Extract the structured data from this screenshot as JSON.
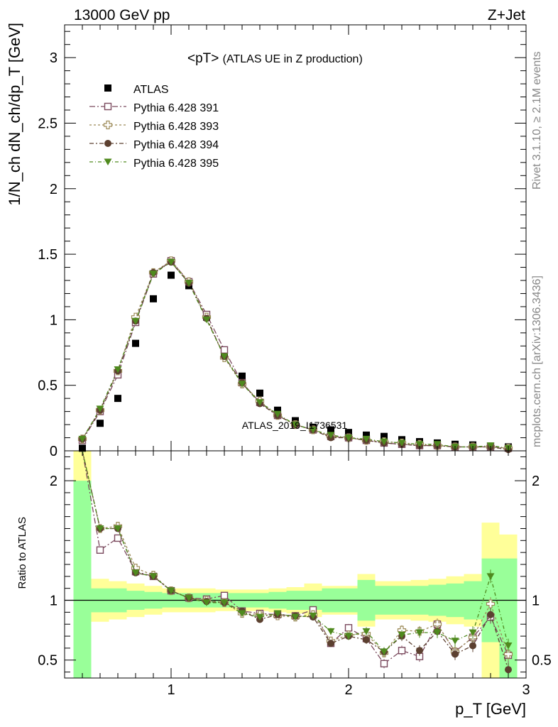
{
  "header": {
    "left": "13000 GeV pp",
    "right": "Z+Jet"
  },
  "side_labels": {
    "rivet": "Rivet 3.1.10, ≥ 2.1M events",
    "mcplots": "mcplots.cern.ch [arXiv:1306.3436]"
  },
  "watermark": "ATLAS_2019_I1736531",
  "chart_data": [
    {
      "type": "scatter",
      "title": "<pT> (ATLAS UE in Z production)",
      "title_main": "<pT>",
      "title_sub": "(ATLAS UE in Z production)",
      "ylabel": "1/N_ch dN_ch/dp_T [GeV]",
      "xlim": [
        0.4,
        3.0
      ],
      "ylim": [
        0,
        3.25
      ],
      "x_ticks": [
        "1",
        "2",
        "3"
      ],
      "y_ticks": [
        "0",
        "0.5",
        "1",
        "1.5",
        "2",
        "2.5",
        "3"
      ],
      "legend_position": "top-left",
      "x": [
        0.5,
        0.6,
        0.7,
        0.8,
        0.9,
        1.0,
        1.1,
        1.2,
        1.3,
        1.4,
        1.5,
        1.6,
        1.7,
        1.8,
        1.9,
        2.0,
        2.1,
        2.2,
        2.3,
        2.4,
        2.5,
        2.6,
        2.7,
        2.8,
        2.9
      ],
      "series": [
        {
          "name": "ATLAS",
          "color": "#000000",
          "marker": "square-filled",
          "values": [
            0.02,
            0.21,
            0.4,
            0.82,
            1.16,
            1.34,
            1.26,
            1.02,
            0.74,
            0.57,
            0.44,
            0.31,
            0.23,
            0.18,
            0.16,
            0.14,
            0.12,
            0.11,
            0.085,
            0.07,
            0.06,
            0.05,
            0.045,
            0.035,
            0.03
          ]
        },
        {
          "name": "Pythia 6.428 391",
          "color": "#7b4a5e",
          "marker": "square-open",
          "values": [
            0.08,
            0.3,
            0.58,
            0.98,
            1.35,
            1.45,
            1.29,
            1.04,
            0.77,
            0.52,
            0.37,
            0.27,
            0.2,
            0.16,
            0.11,
            0.1,
            0.08,
            0.06,
            0.05,
            0.04,
            0.04,
            0.03,
            0.03,
            0.03,
            0.02
          ]
        },
        {
          "name": "Pythia 6.428 393",
          "color": "#9c8a58",
          "marker": "cross-open",
          "values": [
            0.09,
            0.31,
            0.61,
            1.02,
            1.36,
            1.45,
            1.29,
            1.02,
            0.71,
            0.51,
            0.38,
            0.27,
            0.2,
            0.16,
            0.11,
            0.1,
            0.08,
            0.07,
            0.06,
            0.05,
            0.04,
            0.03,
            0.03,
            0.03,
            0.02
          ]
        },
        {
          "name": "Pythia 6.428 394",
          "color": "#5c4030",
          "marker": "circle-filled",
          "values": [
            0.09,
            0.31,
            0.61,
            0.99,
            1.36,
            1.44,
            1.28,
            1.01,
            0.72,
            0.52,
            0.36,
            0.27,
            0.2,
            0.16,
            0.1,
            0.1,
            0.08,
            0.06,
            0.05,
            0.04,
            0.04,
            0.03,
            0.03,
            0.03,
            0.01
          ]
        },
        {
          "name": "Pythia 6.428 395",
          "color": "#4f8a1e",
          "marker": "triangle-down-filled",
          "values": [
            0.09,
            0.32,
            0.62,
            0.99,
            1.35,
            1.44,
            1.28,
            1.0,
            0.72,
            0.51,
            0.37,
            0.28,
            0.2,
            0.16,
            0.12,
            0.1,
            0.09,
            0.07,
            0.06,
            0.05,
            0.05,
            0.03,
            0.03,
            0.04,
            0.02
          ]
        }
      ]
    },
    {
      "type": "scatter",
      "ylabel": "Ratio to ATLAS",
      "xlabel": "p_T [GeV]",
      "xlim": [
        0.4,
        3.0
      ],
      "ylim": [
        0.35,
        2.25
      ],
      "x_ticks": [
        "1",
        "2",
        "3"
      ],
      "y_ticks": [
        "0.5",
        "1",
        "2"
      ],
      "bins": [
        0.45,
        0.55,
        0.65,
        0.75,
        0.85,
        0.95,
        1.05,
        1.15,
        1.25,
        1.35,
        1.45,
        1.55,
        1.65,
        1.75,
        1.85,
        1.95,
        2.05,
        2.15,
        2.25,
        2.35,
        2.45,
        2.55,
        2.65,
        2.75,
        2.85,
        2.95
      ],
      "band_inner": {
        "color": "#99ff99",
        "lower": [
          0.35,
          0.9,
          0.9,
          0.92,
          0.93,
          0.94,
          0.94,
          0.94,
          0.94,
          0.94,
          0.94,
          0.93,
          0.92,
          0.92,
          0.9,
          0.9,
          0.83,
          0.88,
          0.88,
          0.88,
          0.87,
          0.86,
          0.84,
          0.65,
          0.35
        ],
        "upper": [
          2.0,
          1.1,
          1.1,
          1.08,
          1.07,
          1.06,
          1.06,
          1.06,
          1.06,
          1.06,
          1.06,
          1.07,
          1.08,
          1.08,
          1.1,
          1.1,
          1.17,
          1.12,
          1.12,
          1.12,
          1.13,
          1.14,
          1.16,
          1.35,
          1.35
        ]
      },
      "band_outer": {
        "color": "#ffff99",
        "lower": [
          0.35,
          0.82,
          0.84,
          0.86,
          0.88,
          0.9,
          0.9,
          0.9,
          0.91,
          0.91,
          0.91,
          0.9,
          0.89,
          0.86,
          0.88,
          0.88,
          0.78,
          0.84,
          0.84,
          0.83,
          0.82,
          0.8,
          0.78,
          0.35,
          0.35
        ],
        "upper": [
          2.25,
          1.18,
          1.16,
          1.14,
          1.12,
          1.1,
          1.1,
          1.1,
          1.09,
          1.09,
          1.09,
          1.1,
          1.11,
          1.14,
          1.12,
          1.12,
          1.22,
          1.16,
          1.16,
          1.17,
          1.18,
          1.2,
          1.22,
          1.65,
          1.55
        ]
      },
      "series": [
        {
          "name": "Pythia 6.428 391",
          "values": [
            2.3,
            1.42,
            1.52,
            1.24,
            1.2,
            1.08,
            1.02,
            1.01,
            1.04,
            0.91,
            0.89,
            0.88,
            0.87,
            0.92,
            0.64,
            0.77,
            0.68,
            0.47,
            0.58,
            0.53,
            0.8,
            0.57,
            0.69,
            0.86,
            0.54
          ]
        },
        {
          "name": "Pythia 6.428 393",
          "values": [
            2.3,
            1.6,
            1.62,
            1.27,
            1.21,
            1.08,
            1.02,
            1.0,
            0.98,
            0.89,
            0.88,
            0.87,
            0.86,
            0.88,
            0.66,
            0.71,
            0.72,
            0.56,
            0.75,
            0.74,
            0.8,
            0.57,
            0.69,
            0.97,
            0.55
          ]
        },
        {
          "name": "Pythia 6.428 394",
          "values": [
            2.3,
            1.6,
            1.6,
            1.23,
            1.2,
            1.08,
            1.02,
            0.99,
            0.98,
            0.91,
            0.84,
            0.88,
            0.87,
            0.86,
            0.64,
            0.7,
            0.67,
            0.57,
            0.7,
            0.58,
            0.74,
            0.55,
            0.62,
            0.88,
            0.42
          ]
        },
        {
          "name": "Pythia 6.428 395",
          "values": [
            2.3,
            1.6,
            1.6,
            1.23,
            1.2,
            1.08,
            1.02,
            0.98,
            0.98,
            0.89,
            0.86,
            0.89,
            0.86,
            0.87,
            0.74,
            0.7,
            0.74,
            0.57,
            0.71,
            0.73,
            0.73,
            0.66,
            0.73,
            1.2,
            0.62
          ]
        }
      ]
    }
  ]
}
